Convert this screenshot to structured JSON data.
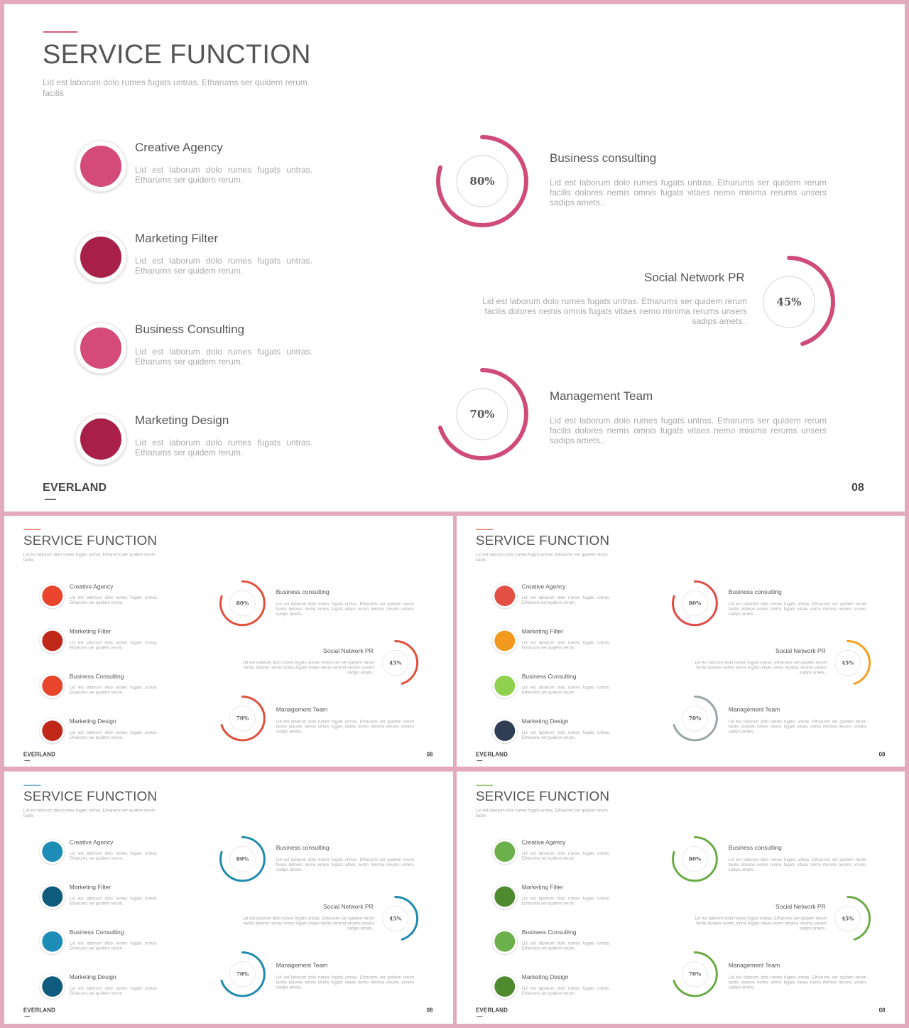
{
  "slide": {
    "title": "SERVICE FUNCTION",
    "subtitle": "Lid est laborum dolo rumes fugats untras. Etharums ser quidem rerum facilis",
    "brand": "EVERLAND",
    "page_number": "08",
    "services": [
      {
        "title": "Creative Agency",
        "text": "Lid est laborum dolo rumes fugats untras. Etharums ser quidem rerum."
      },
      {
        "title": "Marketing Filter",
        "text": "Lid est laborum dolo rumes fugats untras. Etharums ser quidem rerum."
      },
      {
        "title": "Business Consulting",
        "text": "Lid est laborum dolo rumes fugats untras. Etharums ser quidem rerum."
      },
      {
        "title": "Marketing Design",
        "text": "Lid est laborum dolo rumes fugats untras. Etharums ser quidem rerum."
      }
    ],
    "gauges": [
      {
        "title": "Business consulting",
        "label": "80%",
        "value": 80,
        "text": "Lid est laborum dolo rumes fugats untras. Etharums ser quidem rerum facilis dolores nemis omnis fugats vitaes nemo minima rerums unsers sadips amets.."
      },
      {
        "title": "Social Network PR",
        "label": "45%",
        "value": 45,
        "text": "Lid est laborum dolo rumes fugats untras. Etharums ser quidem rerum facilis dolores nemis omnis fugats vitaes nemo minima rerums unsers sadips amets.."
      },
      {
        "title": "Management Team",
        "label": "70%",
        "value": 70,
        "text": "Lid est laborum dolo rumes fugats untras. Etharums ser quidem rerum facilis dolores nemis omnis fugats vitaes nemo minima rerums unsers sadips amets.."
      }
    ]
  },
  "themes": {
    "pink": {
      "accent": "#d9597a",
      "dots": [
        "#d44a78",
        "#a8204a",
        "#d44a78",
        "#a8204a"
      ],
      "gauges": [
        "#cf4b7a",
        "#cf4b7a",
        "#cf4b7a"
      ]
    },
    "red": {
      "accent": "#e05540",
      "dots": [
        "#e8452c",
        "#c0281a",
        "#e8452c",
        "#c0281a"
      ],
      "gauges": [
        "#e0503c",
        "#e0503c",
        "#e0503c"
      ]
    },
    "multi": {
      "accent": "#e05540",
      "dots": [
        "#e34f45",
        "#f29a1f",
        "#8fd14f",
        "#2f3e55"
      ],
      "gauges": [
        "#e04a45",
        "#f2a020",
        "#9aa5a8"
      ]
    },
    "blue": {
      "accent": "#2a8bb3",
      "dots": [
        "#1d8db8",
        "#0f5b7d",
        "#1d8db8",
        "#0f5b7d"
      ],
      "gauges": [
        "#1e8aad",
        "#1e8aad",
        "#1e8aad"
      ]
    },
    "green": {
      "accent": "#6aaa3a",
      "dots": [
        "#6bb04a",
        "#4e8a2e",
        "#6bb04a",
        "#4e8a2e"
      ],
      "gauges": [
        "#6aab45",
        "#6aab45",
        "#6aab45"
      ]
    }
  }
}
